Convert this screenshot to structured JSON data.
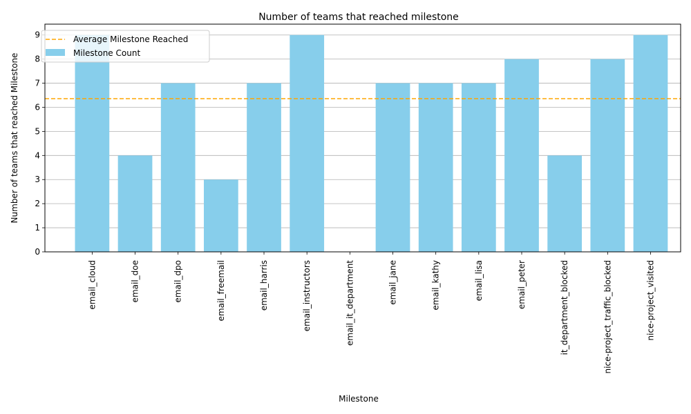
{
  "chart_data": {
    "type": "bar",
    "title": "Number of teams that reached milestone",
    "xlabel": "Milestone",
    "ylabel": "Number of teams that reached Milestone",
    "categories": [
      "email_cloud",
      "email_doe",
      "email_dpo",
      "email_freemail",
      "email_harris",
      "email_instructors",
      "email_it_department",
      "email_jane",
      "email_kathy",
      "email_lisa",
      "email_peter",
      "it_department_blocked",
      "nice-project_traffic_blocked",
      "nice-project_visited"
    ],
    "series": [
      {
        "name": "Milestone Count",
        "values": [
          9,
          4,
          7,
          3,
          7,
          9,
          0,
          7,
          7,
          7,
          8,
          4,
          8,
          9
        ],
        "color": "#87ceeb"
      }
    ],
    "reference_lines": [
      {
        "name": "Average Milestone Reached",
        "value": 6.357,
        "style": "dashed",
        "color": "#ffa500"
      }
    ],
    "ylim": [
      0,
      9.45
    ],
    "yticks": [
      0,
      1,
      2,
      3,
      4,
      5,
      6,
      7,
      8,
      9
    ],
    "grid": "horizontal",
    "legend_position": "top-left"
  }
}
